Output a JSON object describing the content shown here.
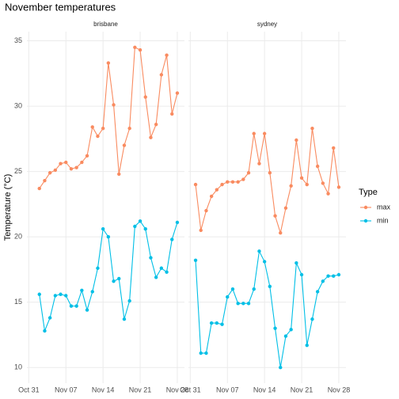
{
  "chart_data": {
    "type": "line",
    "title": "November temperatures",
    "ylabel": "Temperature (°C)",
    "legend_title": "Type",
    "legend": "right",
    "grid": true,
    "xlim": [
      -0.35,
      29.35
    ],
    "xticks": [
      {
        "value": 0,
        "label": "Oct 31"
      },
      {
        "value": 7,
        "label": "Nov 07"
      },
      {
        "value": 14,
        "label": "Nov 14"
      },
      {
        "value": 21,
        "label": "Nov 21"
      },
      {
        "value": 28,
        "label": "Nov 28"
      }
    ],
    "ylim": [
      8.8,
      35.7
    ],
    "yticks": [
      10,
      15,
      20,
      25,
      30,
      35
    ],
    "panels": [
      {
        "title": "brisbane",
        "x": [
          2,
          3,
          4,
          5,
          6,
          7,
          8,
          9,
          10,
          11,
          12,
          13,
          14,
          15,
          16,
          17,
          18,
          19,
          20,
          21,
          22,
          23,
          24,
          25,
          26,
          27,
          28
        ],
        "series": [
          {
            "name": "max",
            "color": "#F98B60",
            "values": [
              23.7,
              24.3,
              24.9,
              25.1,
              25.6,
              25.7,
              25.2,
              25.3,
              25.7,
              26.2,
              28.4,
              27.7,
              28.3,
              33.3,
              30.1,
              24.8,
              27.0,
              28.3,
              34.5,
              34.3,
              30.7,
              27.6,
              28.6,
              32.4,
              33.9,
              29.4,
              31.0
            ]
          },
          {
            "name": "min",
            "color": "#00BFE6",
            "values": [
              15.6,
              12.8,
              13.8,
              15.5,
              15.6,
              15.5,
              14.7,
              14.7,
              15.9,
              14.4,
              15.8,
              17.6,
              20.6,
              20.0,
              16.6,
              16.8,
              13.7,
              15.1,
              20.8,
              21.2,
              20.6,
              18.4,
              16.9,
              17.6,
              17.3,
              19.8,
              21.1
            ]
          }
        ]
      },
      {
        "title": "sydney",
        "x": [
          1,
          2,
          3,
          4,
          5,
          6,
          7,
          8,
          9,
          10,
          11,
          12,
          13,
          14,
          15,
          16,
          17,
          18,
          19,
          20,
          21,
          22,
          23,
          24,
          25,
          26,
          27,
          28
        ],
        "series": [
          {
            "name": "max",
            "color": "#F98B60",
            "values": [
              24.0,
              20.5,
              22.0,
              23.1,
              23.6,
              24.0,
              24.2,
              24.2,
              24.2,
              24.4,
              24.9,
              27.9,
              25.6,
              27.9,
              24.9,
              21.6,
              20.3,
              22.2,
              23.9,
              27.4,
              24.5,
              24.0,
              28.3,
              25.4,
              24.1,
              23.3,
              26.8,
              23.8
            ]
          },
          {
            "name": "min",
            "color": "#00BFE6",
            "values": [
              18.2,
              11.1,
              11.1,
              13.4,
              13.4,
              13.3,
              15.4,
              16.0,
              14.9,
              14.9,
              14.9,
              16.0,
              18.9,
              18.1,
              16.2,
              13.0,
              10.0,
              12.4,
              12.9,
              18.0,
              17.1,
              11.7,
              13.7,
              15.8,
              16.6,
              17.0,
              17.0,
              17.1
            ]
          }
        ]
      }
    ]
  }
}
